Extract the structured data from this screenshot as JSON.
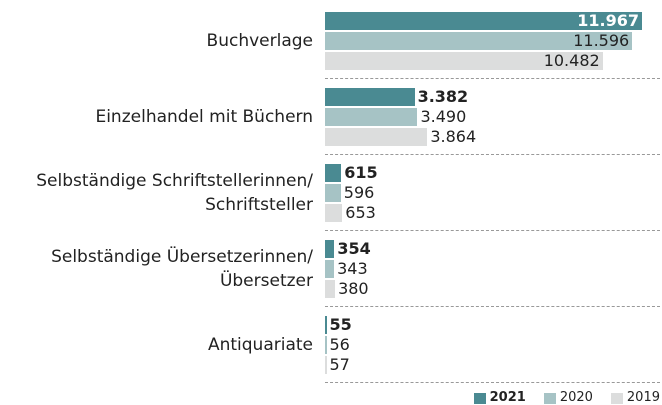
{
  "chart_data": {
    "type": "bar",
    "orientation": "horizontal",
    "categories": [
      "Buchverlage",
      "Einzelhandel mit Büchern",
      "Selbständige Schriftstellerinnen/\nSchriftsteller",
      "Selbständige Übersetzerinnen/\nÜbersetzer",
      "Antiquariate"
    ],
    "series": [
      {
        "name": "2021",
        "color": "#4a8a92",
        "values": [
          11967,
          3382,
          615,
          354,
          55
        ],
        "value_labels": [
          "11.967",
          "3.382",
          "615",
          "354",
          "55"
        ]
      },
      {
        "name": "2020",
        "color": "#a6c3c5",
        "values": [
          11596,
          3490,
          596,
          343,
          56
        ],
        "value_labels": [
          "11.596",
          "3.490",
          "596",
          "343",
          "56"
        ]
      },
      {
        "name": "2019",
        "color": "#dcdddd",
        "values": [
          10482,
          3864,
          653,
          380,
          57
        ],
        "value_labels": [
          "10.482",
          "3.864",
          "653",
          "380",
          "57"
        ]
      }
    ],
    "legend": "bottom-right"
  }
}
